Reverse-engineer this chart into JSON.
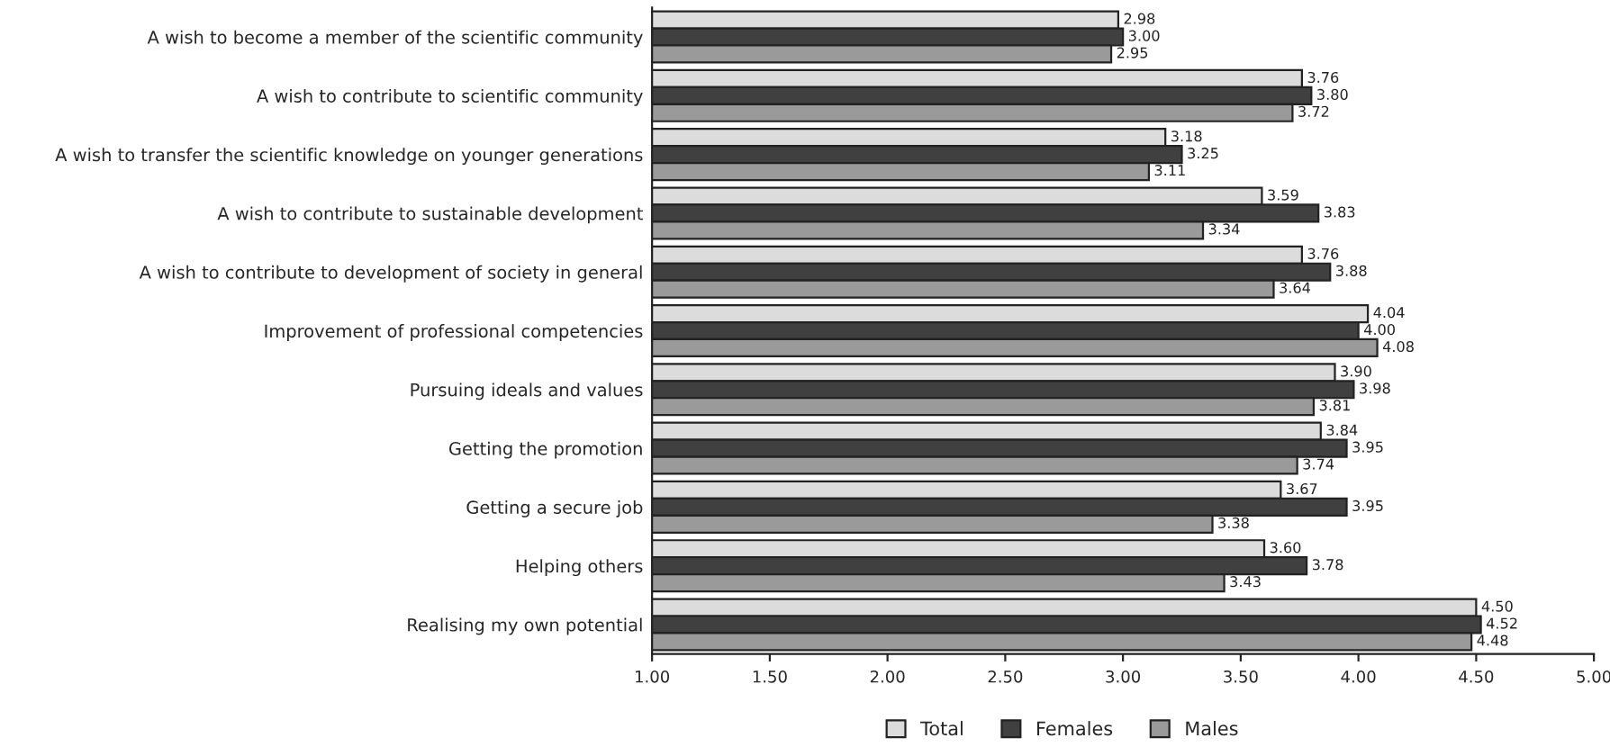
{
  "chart_data": {
    "type": "bar",
    "orientation": "horizontal",
    "categories": [
      "A wish to become a member of the scientific community",
      "A wish to contribute to scientific community",
      "A wish to transfer the scientific knowledge on younger generations",
      "A wish to contribute to sustainable development",
      "A wish to contribute to development of society in general",
      "Improvement of professional competencies",
      "Pursuing ideals and values",
      "Getting the promotion",
      "Getting a secure job",
      "Helping others",
      "Realising my own potential"
    ],
    "series": [
      {
        "name": "Total",
        "color": "#dcdcdc",
        "values": [
          2.98,
          3.76,
          3.18,
          3.59,
          3.76,
          4.04,
          3.9,
          3.84,
          3.67,
          3.6,
          4.5
        ],
        "value_labels": [
          "2.98",
          "3.76",
          "3.18",
          "3.59",
          "3.76",
          "4.04",
          "3.90",
          "3.84",
          "3.67",
          "3.60",
          "4.50"
        ]
      },
      {
        "name": "Females",
        "color": "#404040",
        "values": [
          3.0,
          3.8,
          3.25,
          3.83,
          3.88,
          4.0,
          3.98,
          3.95,
          3.95,
          3.78,
          4.52
        ],
        "value_labels": [
          "3.00",
          "3.80",
          "3.25",
          "3.83",
          "3.88",
          "4.00",
          "3.98",
          "3.95",
          "3.95",
          "3.78",
          "4.52"
        ]
      },
      {
        "name": "Males",
        "color": "#9a9a9a",
        "values": [
          2.95,
          3.72,
          3.11,
          3.34,
          3.64,
          4.08,
          3.81,
          3.74,
          3.38,
          3.43,
          4.48
        ],
        "value_labels": [
          "2.95",
          "3.72",
          "3.11",
          "3.34",
          "3.64",
          "4.08",
          "3.81",
          "3.74",
          "3.38",
          "3.43",
          "4.48"
        ]
      }
    ],
    "xlim": [
      1,
      5
    ],
    "xticks": [
      {
        "value": 1,
        "label": "1.00"
      },
      {
        "value": 1.5,
        "label": "1.50"
      },
      {
        "value": 2,
        "label": "2.00"
      },
      {
        "value": 2.5,
        "label": "2.50"
      },
      {
        "value": 3,
        "label": "3.00"
      },
      {
        "value": 3.5,
        "label": "3.50"
      },
      {
        "value": 4,
        "label": "4.00"
      },
      {
        "value": 4.5,
        "label": "4.50"
      },
      {
        "value": 5,
        "label": "5.00"
      }
    ],
    "grid": false,
    "legend": "bottom"
  }
}
